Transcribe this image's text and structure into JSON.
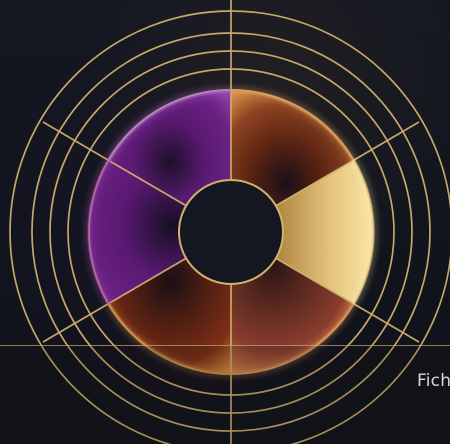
{
  "caption": {
    "text": "Fich"
  },
  "wheel": {
    "segments": [
      {
        "color_top": "#2e0e3b",
        "color_main": "#5a1a70",
        "color_edge": "#7f2f8b",
        "icon": "segment-purple"
      },
      {
        "color_top": "#5b2412",
        "color_main": "#8d4322",
        "color_edge": "#c06e3b",
        "icon": "segment-brown"
      },
      {
        "color_top": "#7f5d2f",
        "color_main": "#d8b260",
        "color_edge": "#f6de90",
        "icon": "segment-gold"
      },
      {
        "color_top": "#5d2a20",
        "color_main": "#8a3d2f",
        "color_edge": "#c16b4b",
        "icon": "segment-maroon"
      },
      {
        "color_top": "#2d0f12",
        "color_main": "#6e2814",
        "color_edge": "#b25a23",
        "icon": "segment-bronze"
      },
      {
        "color_top": "#2b0d38",
        "color_main": "#5a1972",
        "color_edge": "#7e2b91",
        "icon": "segment-violet"
      }
    ],
    "guide_color": "#cfb06c",
    "center_color": "#141721"
  }
}
